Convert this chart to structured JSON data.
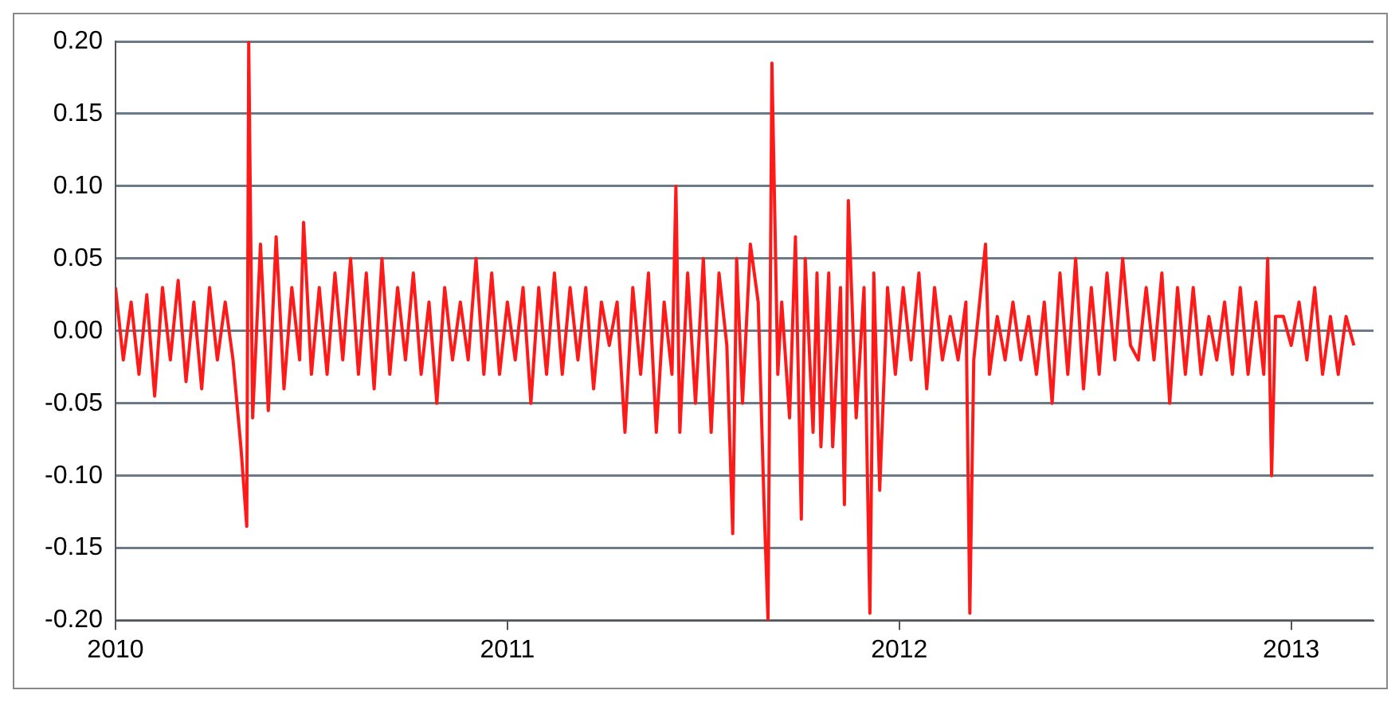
{
  "chart_data": {
    "type": "line",
    "x": [
      2010.0,
      2010.02,
      2010.04,
      2010.06,
      2010.08,
      2010.1,
      2010.12,
      2010.14,
      2010.16,
      2010.18,
      2010.2,
      2010.22,
      2010.24,
      2010.26,
      2010.28,
      2010.3,
      2010.32,
      2010.335,
      2010.34,
      2010.35,
      2010.37,
      2010.39,
      2010.41,
      2010.43,
      2010.45,
      2010.47,
      2010.48,
      2010.5,
      2010.52,
      2010.54,
      2010.56,
      2010.58,
      2010.6,
      2010.62,
      2010.64,
      2010.66,
      2010.68,
      2010.7,
      2010.72,
      2010.74,
      2010.76,
      2010.78,
      2010.8,
      2010.82,
      2010.84,
      2010.86,
      2010.88,
      2010.9,
      2010.92,
      2010.94,
      2010.96,
      2010.98,
      2011.0,
      2011.02,
      2011.04,
      2011.06,
      2011.08,
      2011.1,
      2011.12,
      2011.14,
      2011.16,
      2011.18,
      2011.2,
      2011.22,
      2011.24,
      2011.26,
      2011.28,
      2011.3,
      2011.32,
      2011.34,
      2011.36,
      2011.38,
      2011.4,
      2011.42,
      2011.43,
      2011.44,
      2011.46,
      2011.48,
      2011.5,
      2011.52,
      2011.54,
      2011.56,
      2011.575,
      2011.585,
      2011.6,
      2011.62,
      2011.64,
      2011.655,
      2011.665,
      2011.675,
      2011.69,
      2011.7,
      2011.72,
      2011.735,
      2011.75,
      2011.76,
      2011.78,
      2011.79,
      2011.8,
      2011.82,
      2011.83,
      2011.85,
      2011.86,
      2011.87,
      2011.89,
      2011.91,
      2011.925,
      2011.935,
      2011.95,
      2011.97,
      2011.99,
      2012.01,
      2012.03,
      2012.05,
      2012.07,
      2012.09,
      2012.11,
      2012.13,
      2012.15,
      2012.17,
      2012.18,
      2012.19,
      2012.22,
      2012.23,
      2012.25,
      2012.27,
      2012.29,
      2012.31,
      2012.33,
      2012.35,
      2012.37,
      2012.39,
      2012.41,
      2012.43,
      2012.45,
      2012.47,
      2012.49,
      2012.51,
      2012.53,
      2012.55,
      2012.57,
      2012.59,
      2012.61,
      2012.63,
      2012.65,
      2012.67,
      2012.69,
      2012.71,
      2012.73,
      2012.75,
      2012.77,
      2012.79,
      2012.81,
      2012.83,
      2012.85,
      2012.87,
      2012.89,
      2012.91,
      2012.93,
      2012.94,
      2012.95,
      2012.96,
      2012.98,
      2013.0,
      2013.02,
      2013.04,
      2013.06,
      2013.08,
      2013.1,
      2013.12,
      2013.14,
      2013.16
    ],
    "series": [
      {
        "color": "#ff1a1a",
        "values": [
          0.03,
          -0.02,
          0.02,
          -0.03,
          0.025,
          -0.045,
          0.03,
          -0.02,
          0.035,
          -0.035,
          0.02,
          -0.04,
          0.03,
          -0.02,
          0.02,
          -0.02,
          -0.08,
          -0.135,
          0.2,
          -0.06,
          0.06,
          -0.055,
          0.065,
          -0.04,
          0.03,
          -0.02,
          0.075,
          -0.03,
          0.03,
          -0.03,
          0.04,
          -0.02,
          0.05,
          -0.03,
          0.04,
          -0.04,
          0.05,
          -0.03,
          0.03,
          -0.02,
          0.04,
          -0.03,
          0.02,
          -0.05,
          0.03,
          -0.02,
          0.02,
          -0.02,
          0.05,
          -0.03,
          0.04,
          -0.03,
          0.02,
          -0.02,
          0.03,
          -0.05,
          0.03,
          -0.03,
          0.04,
          -0.03,
          0.03,
          -0.02,
          0.03,
          -0.04,
          0.02,
          -0.01,
          0.02,
          -0.07,
          0.03,
          -0.03,
          0.04,
          -0.07,
          0.02,
          -0.03,
          0.1,
          -0.07,
          0.04,
          -0.05,
          0.05,
          -0.07,
          0.04,
          -0.01,
          -0.14,
          0.05,
          -0.05,
          0.06,
          0.02,
          -0.12,
          -0.2,
          0.185,
          -0.03,
          0.02,
          -0.06,
          0.065,
          -0.13,
          0.05,
          -0.07,
          0.04,
          -0.08,
          0.04,
          -0.08,
          0.03,
          -0.12,
          0.09,
          -0.06,
          0.03,
          -0.195,
          0.04,
          -0.11,
          0.03,
          -0.03,
          0.03,
          -0.02,
          0.04,
          -0.04,
          0.03,
          -0.02,
          0.01,
          -0.02,
          0.02,
          -0.195,
          -0.02,
          0.06,
          -0.03,
          0.01,
          -0.02,
          0.02,
          -0.02,
          0.01,
          -0.03,
          0.02,
          -0.05,
          0.04,
          -0.03,
          0.05,
          -0.04,
          0.03,
          -0.03,
          0.04,
          -0.02,
          0.05,
          -0.01,
          -0.02,
          0.03,
          -0.02,
          0.04,
          -0.05,
          0.03,
          -0.03,
          0.03,
          -0.03,
          0.01,
          -0.02,
          0.02,
          -0.03,
          0.03,
          -0.03,
          0.02,
          -0.03,
          0.05,
          -0.1,
          0.01,
          0.01,
          -0.01,
          0.02,
          -0.02,
          0.03,
          -0.03,
          0.01,
          -0.03,
          0.01,
          -0.01
        ]
      }
    ],
    "xlim": [
      2010,
      2013.21
    ],
    "xticks": [
      2010,
      2011,
      2012,
      2013
    ],
    "ylim": [
      -0.2,
      0.2
    ],
    "yticks": [
      {
        "value": -0.2,
        "label": "-0.20"
      },
      {
        "value": -0.15,
        "label": "-0.15"
      },
      {
        "value": -0.1,
        "label": "-0.10"
      },
      {
        "value": -0.05,
        "label": "-0.05"
      },
      {
        "value": 0,
        "label": "0.00"
      },
      {
        "value": 0.05,
        "label": "0.05"
      },
      {
        "value": 0.1,
        "label": "0.10"
      },
      {
        "value": 0.15,
        "label": "0.15"
      },
      {
        "value": 0.2,
        "label": "0.20"
      }
    ],
    "grid": "y",
    "legend": false,
    "marker": "none",
    "line_style": "solid"
  }
}
